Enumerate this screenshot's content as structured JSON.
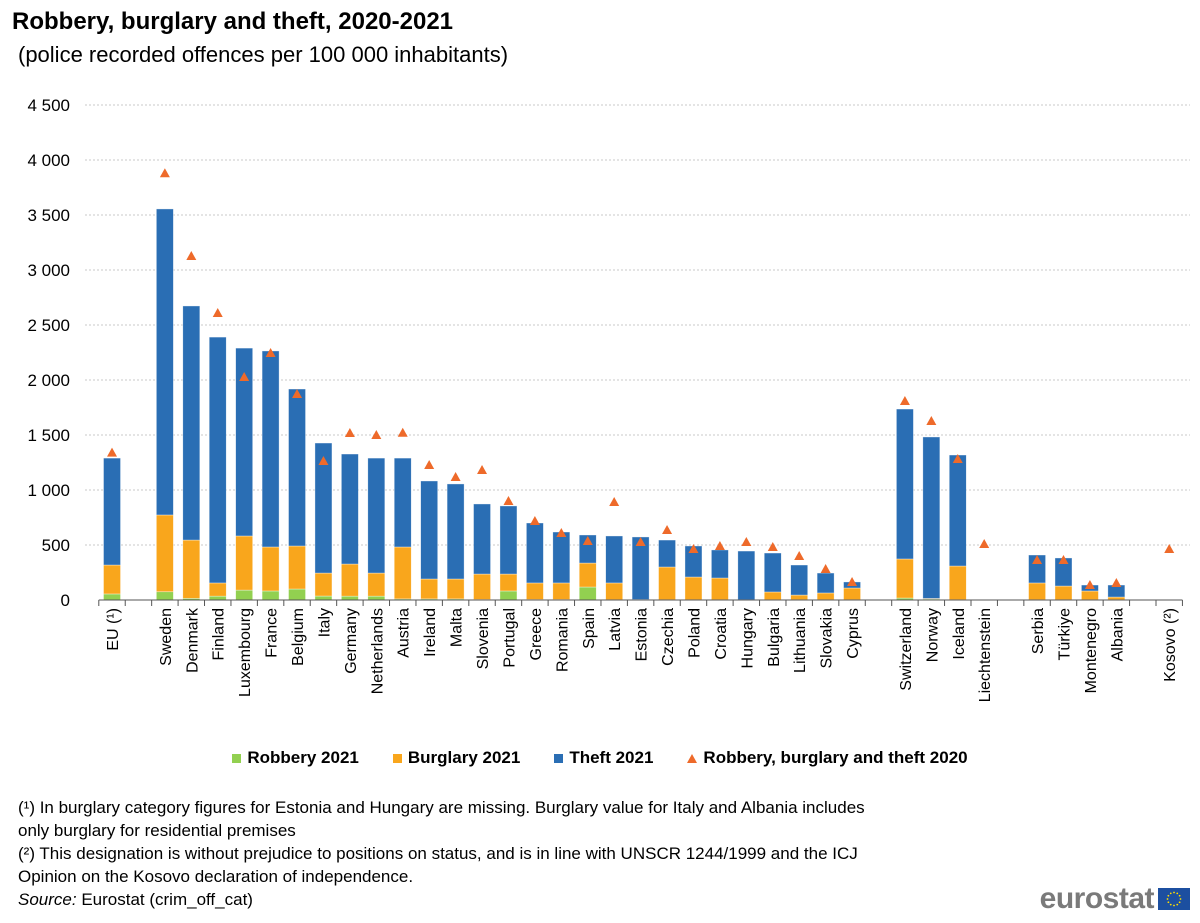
{
  "title": "Robbery, burglary and theft, 2020-2021",
  "subtitle": "(police recorded offences per 100 000 inhabitants)",
  "colors": {
    "robbery_2021": "#92D050",
    "burglary_2021": "#F9A61C",
    "theft_2021": "#2A6EB4",
    "total_2020": "#EE6A2A",
    "grid": "#c8c8c8"
  },
  "chart_data": {
    "type": "bar",
    "stacked": true,
    "title": "Robbery, burglary and theft, 2020-2021",
    "ylim": [
      0,
      4500
    ],
    "yticks": [
      0,
      500,
      1000,
      1500,
      2000,
      2500,
      3000,
      3500,
      4000,
      4500
    ],
    "ytick_labels": [
      "0",
      "500",
      "1 000",
      "1 500",
      "2 000",
      "2 500",
      "3 000",
      "3 500",
      "4 000",
      "4 500"
    ],
    "grid": true,
    "legend_position": "bottom",
    "groups": [
      [
        "EU (¹)"
      ],
      [
        "Sweden",
        "Denmark",
        "Finland",
        "Luxembourg",
        "France",
        "Belgium",
        "Italy",
        "Germany",
        "Netherlands",
        "Austria",
        "Ireland",
        "Malta",
        "Slovenia",
        "Portugal",
        "Greece",
        "Romania",
        "Spain",
        "Latvia",
        "Estonia",
        "Czechia",
        "Poland",
        "Croatia",
        "Hungary",
        "Bulgaria",
        "Lithuania",
        "Slovakia",
        "Cyprus"
      ],
      [
        "Switzerland",
        "Norway",
        "Iceland",
        "Liechtenstein"
      ],
      [
        "Serbia",
        "Türkiye",
        "Montenegro",
        "Albania"
      ],
      [
        "Kosovo (²)"
      ]
    ],
    "series": [
      {
        "name": "Robbery 2021",
        "kind": "bar",
        "values": [
          55,
          75,
          15,
          35,
          90,
          82,
          100,
          36,
          35,
          35,
          10,
          10,
          10,
          5,
          82,
          5,
          5,
          118,
          3,
          5,
          3,
          3,
          3,
          3,
          3,
          3,
          3,
          3,
          18,
          9,
          3,
          null,
          3,
          3,
          3,
          3,
          null
        ]
      },
      {
        "name": "Burglary 2021",
        "kind": "bar",
        "values": [
          263,
          698,
          530,
          120,
          492,
          400,
          391,
          209,
          292,
          210,
          472,
          181,
          181,
          231,
          154,
          150,
          150,
          218,
          152,
          null,
          297,
          206,
          197,
          null,
          70,
          42,
          61,
          106,
          355,
          5,
          306,
          null,
          152,
          124,
          79,
          24,
          null
        ]
      },
      {
        "name": "Theft 2021",
        "kind": "bar",
        "values": [
          972,
          2782,
          2128,
          2235,
          1708,
          1782,
          1427,
          1182,
          1000,
          1045,
          808,
          891,
          864,
          637,
          619,
          545,
          463,
          255,
          427,
          568,
          245,
          282,
          255,
          442,
          354,
          273,
          181,
          55,
          1363,
          1468,
          1009,
          null,
          254,
          255,
          54,
          109,
          null
        ]
      },
      {
        "name": "Robbery, burglary and theft 2020",
        "kind": "marker",
        "marker": "triangle",
        "values": [
          1340,
          3880,
          3127,
          2609,
          2027,
          2245,
          1873,
          1264,
          1518,
          1500,
          1520,
          1227,
          1118,
          1182,
          900,
          718,
          609,
          536,
          891,
          527,
          636,
          464,
          491,
          527,
          482,
          400,
          282,
          164,
          1809,
          1627,
          1282,
          509,
          364,
          364,
          136,
          155,
          464
        ]
      }
    ]
  },
  "legend": {
    "robbery": "Robbery 2021",
    "burglary": "Burglary 2021",
    "theft": "Theft 2021",
    "total_2020": "Robbery, burglary and theft 2020"
  },
  "footnotes": {
    "note1_line1": "(¹) In burglary category figures for Estonia and Hungary are missing. Burglary value for Italy and Albania includes",
    "note1_line2": "only burglary for residential premises",
    "note2_line1": "(²) This designation is without prejudice to positions on status, and is in line with UNSCR 1244/1999 and the ICJ",
    "note2_line2": "Opinion on the Kosovo declaration of independence.",
    "source_label": "Source:",
    "source_text": " Eurostat (crim_off_cat)"
  },
  "logo": {
    "text": "eurostat"
  }
}
